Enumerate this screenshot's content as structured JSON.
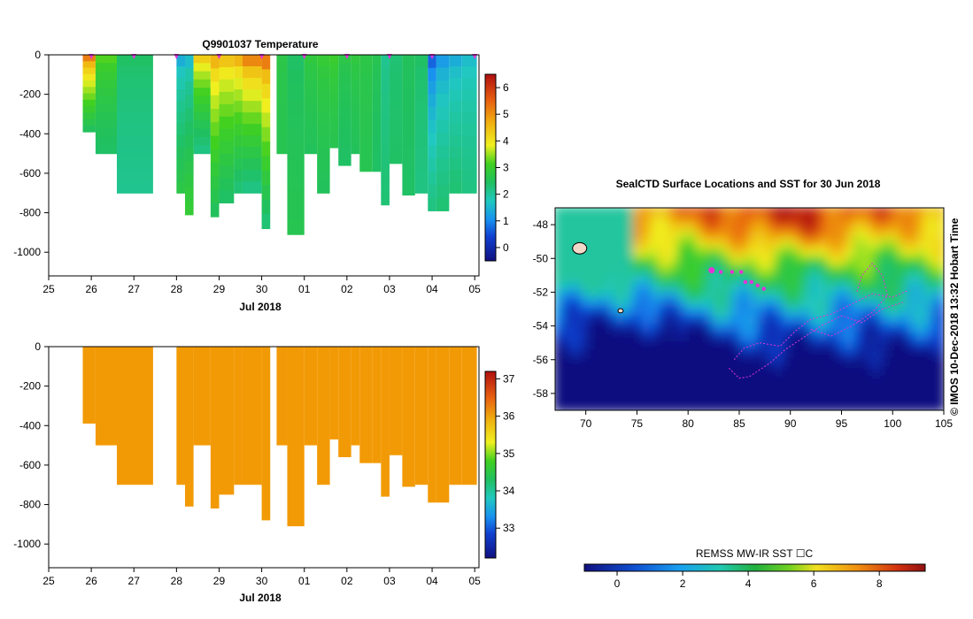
{
  "figure": {
    "credit": "© IMOS 10-Dec-2018 13:32 Hobart Time",
    "colors": {
      "profile_fill": "#f29a05",
      "track": "#e233d8",
      "axis": "#000000"
    }
  },
  "chart_data": [
    {
      "id": "temperature",
      "type": "heatmap",
      "title": "Q9901037  Temperature",
      "xlabel": "Jul 2018",
      "x_tick_labels": [
        "25",
        "26",
        "27",
        "28",
        "29",
        "30",
        "01",
        "02",
        "03",
        "04",
        "05"
      ],
      "xlim": [
        25,
        35.1
      ],
      "ylim": [
        -1120,
        0
      ],
      "y_ticks": [
        0,
        -200,
        -400,
        -600,
        -800,
        -1000
      ],
      "colorbar": {
        "min": -0.5,
        "max": 6.5,
        "ticks": [
          0,
          1,
          2,
          3,
          4,
          5,
          6
        ]
      },
      "profile_times": [
        25.8,
        26.1,
        26.6,
        28.0,
        28.2,
        28.4,
        28.8,
        29.0,
        29.35,
        29.55,
        30.0,
        30.35,
        30.6,
        31.0,
        31.3,
        31.6,
        31.8,
        32.1,
        32.3,
        32.6,
        32.8,
        33.0,
        33.3,
        33.6,
        33.9,
        34.1,
        34.4,
        34.7
      ],
      "profile_ends": [
        26.1,
        26.6,
        27.45,
        28.2,
        28.4,
        28.8,
        29.0,
        29.35,
        29.55,
        30.0,
        30.2,
        30.6,
        31.0,
        31.3,
        31.6,
        31.8,
        32.1,
        32.3,
        32.6,
        32.8,
        33.0,
        33.3,
        33.6,
        33.9,
        34.1,
        34.4,
        34.7,
        35.05
      ],
      "max_depth": [
        -390,
        -500,
        -700,
        -700,
        -810,
        -500,
        -820,
        -750,
        -700,
        -700,
        -880,
        -500,
        -910,
        -500,
        -700,
        -470,
        -560,
        -500,
        -590,
        -590,
        -760,
        -550,
        -710,
        -700,
        -790,
        -790,
        -700,
        -700
      ],
      "surface_temp": [
        5.2,
        3.2,
        2.4,
        1.4,
        1.6,
        4.3,
        4.6,
        4.4,
        4.6,
        5.1,
        5.2,
        2.7,
        2.4,
        2.8,
        2.9,
        3.0,
        2.7,
        2.8,
        2.7,
        2.6,
        2.1,
        2.3,
        2.5,
        2.4,
        0.7,
        1.2,
        1.4,
        1.6
      ],
      "deep_temp": [
        2.5,
        2.4,
        2.1,
        2.7,
        2.9,
        2.2,
        2.5,
        2.4,
        2.3,
        2.2,
        2.3,
        2.6,
        2.6,
        2.5,
        2.5,
        2.6,
        2.4,
        2.5,
        2.6,
        2.4,
        2.3,
        2.4,
        2.4,
        2.2,
        2.2,
        2.3,
        2.3,
        2.2
      ],
      "surface_markers": [
        26.0,
        27.0,
        28.0,
        29.0,
        30.0,
        31.0,
        32.0,
        33.0,
        34.0,
        35.0
      ]
    },
    {
      "id": "salinity",
      "type": "heatmap",
      "title": "",
      "xlabel": "Jul 2018",
      "x_tick_labels": [
        "25",
        "26",
        "27",
        "28",
        "29",
        "30",
        "01",
        "02",
        "03",
        "04",
        "05"
      ],
      "xlim": [
        25,
        35.1
      ],
      "ylim": [
        -1120,
        0
      ],
      "y_ticks": [
        0,
        -200,
        -400,
        -600,
        -800,
        -1000
      ],
      "colorbar": {
        "min": 32.2,
        "max": 37.2,
        "ticks": [
          33,
          34,
          35,
          36,
          37
        ]
      },
      "fill_value": 36.0
    },
    {
      "id": "sst_map",
      "type": "heatmap",
      "title": "SealCTD Surface Locations and SST for 30 Jun 2018",
      "xlabel": "",
      "xlim": [
        67,
        105
      ],
      "ylim": [
        -59,
        -47
      ],
      "x_ticks": [
        70,
        75,
        80,
        85,
        90,
        95,
        100,
        105
      ],
      "y_ticks": [
        -48,
        -50,
        -52,
        -54,
        -56,
        -58
      ],
      "colorbar": {
        "label": "REMSS MW-IR SST ☐C",
        "min": -1.0,
        "max": 9.4,
        "ticks": [
          0,
          2,
          4,
          6,
          8
        ]
      },
      "track_points": [
        [
          82.3,
          -50.7
        ],
        [
          83.2,
          -50.8
        ],
        [
          84.3,
          -50.8
        ],
        [
          85.2,
          -50.8
        ],
        [
          85.6,
          -51.4
        ],
        [
          86.2,
          -51.4
        ],
        [
          86.8,
          -51.6
        ],
        [
          87.4,
          -51.8
        ]
      ],
      "track_paths": [
        [
          [
            84.5,
            -56.0
          ],
          [
            85.5,
            -55.3
          ],
          [
            87,
            -55.0
          ],
          [
            89,
            -55.2
          ],
          [
            90.5,
            -54.3
          ],
          [
            92,
            -53.6
          ],
          [
            94,
            -53.3
          ],
          [
            96,
            -52.7
          ],
          [
            98,
            -52.1
          ],
          [
            100,
            -52.3
          ],
          [
            101.5,
            -51.9
          ]
        ],
        [
          [
            84,
            -56.5
          ],
          [
            85,
            -57.1
          ],
          [
            86,
            -57.0
          ],
          [
            88,
            -56.2
          ],
          [
            89.5,
            -55.4
          ],
          [
            91,
            -54.8
          ],
          [
            93,
            -54.0
          ],
          [
            95,
            -53.4
          ],
          [
            97,
            -53.8
          ],
          [
            99,
            -53.0
          ],
          [
            101,
            -52.6
          ]
        ],
        [
          [
            92,
            -54.2
          ],
          [
            94,
            -54.6
          ],
          [
            96,
            -54.0
          ],
          [
            98,
            -53.2
          ],
          [
            99.5,
            -52.2
          ],
          [
            99,
            -51.0
          ],
          [
            98,
            -50.3
          ],
          [
            97,
            -51.0
          ],
          [
            96.5,
            -52.0
          ]
        ]
      ],
      "islands": [
        [
          69.4,
          -49.4
        ],
        [
          73.4,
          -53.1
        ]
      ]
    }
  ]
}
